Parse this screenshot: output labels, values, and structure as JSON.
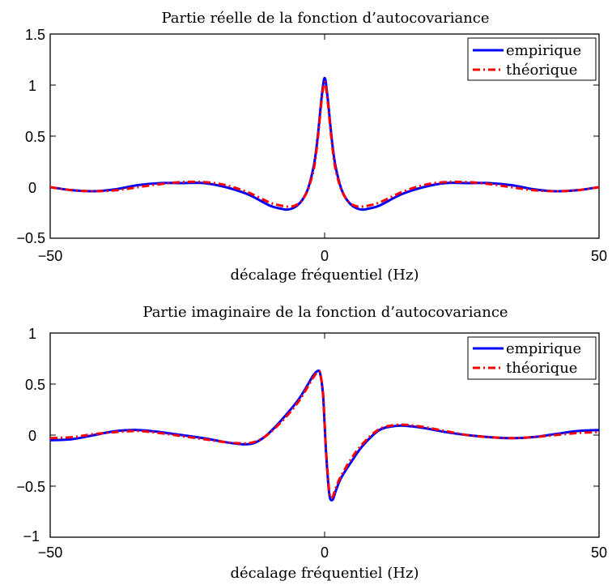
{
  "chart_data": [
    {
      "type": "line",
      "title": "Partie réelle de la fonction d’autocovariance",
      "xlabel": "décalage fréquentiel (Hz)",
      "ylabel": "",
      "xlim": [
        -50,
        50
      ],
      "ylim": [
        -0.5,
        1.5
      ],
      "xticks": [
        -50,
        0,
        50
      ],
      "yticks": [
        -0.5,
        0,
        0.5,
        1,
        1.5
      ],
      "xtick_labels": [
        "−50",
        "0",
        "50"
      ],
      "ytick_labels": [
        "−0.5",
        "0",
        "0.5",
        "1",
        "1.5"
      ],
      "grid": false,
      "legend_position": "top-right",
      "series": [
        {
          "name": "empirique",
          "color": "#0000ff",
          "style": "solid",
          "x": [
            -50,
            -46,
            -42,
            -38,
            -34,
            -30,
            -26,
            -22,
            -18,
            -14,
            -10,
            -8,
            -7,
            -6,
            -5,
            -4,
            -3,
            -2,
            -1.5,
            -1,
            -0.5,
            0,
            0.5,
            1,
            1.5,
            2,
            3,
            4,
            5,
            6,
            7,
            8,
            10,
            14,
            18,
            22,
            26,
            30,
            34,
            38,
            42,
            46,
            50
          ],
          "y": [
            0.0,
            -0.03,
            -0.04,
            -0.02,
            0.02,
            0.04,
            0.04,
            0.04,
            0.0,
            -0.07,
            -0.18,
            -0.21,
            -0.22,
            -0.21,
            -0.18,
            -0.12,
            -0.01,
            0.2,
            0.38,
            0.63,
            0.9,
            1.07,
            0.9,
            0.63,
            0.38,
            0.2,
            -0.01,
            -0.12,
            -0.18,
            -0.21,
            -0.22,
            -0.21,
            -0.18,
            -0.07,
            0.0,
            0.04,
            0.04,
            0.04,
            0.02,
            -0.02,
            -0.04,
            -0.03,
            0.0
          ]
        },
        {
          "name": "théorique",
          "color": "#ff0000",
          "style": "dashdot",
          "x": [
            -50,
            -46,
            -42,
            -38,
            -34,
            -30,
            -26,
            -22,
            -18,
            -14,
            -10,
            -8,
            -7,
            -6,
            -5,
            -4,
            -3,
            -2,
            -1.5,
            -1,
            -0.5,
            0,
            0.5,
            1,
            1.5,
            2,
            3,
            4,
            5,
            6,
            7,
            8,
            10,
            14,
            18,
            22,
            26,
            30,
            34,
            38,
            42,
            46,
            50
          ],
          "y": [
            0.0,
            -0.03,
            -0.04,
            -0.03,
            0.0,
            0.03,
            0.05,
            0.05,
            0.02,
            -0.05,
            -0.15,
            -0.18,
            -0.19,
            -0.19,
            -0.17,
            -0.12,
            -0.02,
            0.17,
            0.35,
            0.6,
            0.87,
            1.03,
            0.87,
            0.6,
            0.35,
            0.17,
            -0.02,
            -0.12,
            -0.17,
            -0.19,
            -0.19,
            -0.18,
            -0.15,
            -0.05,
            0.02,
            0.05,
            0.05,
            0.03,
            0.0,
            -0.03,
            -0.04,
            -0.03,
            0.0
          ]
        }
      ]
    },
    {
      "type": "line",
      "title": "Partie imaginaire de la fonction d’autocovariance",
      "xlabel": "décalage fréquentiel (Hz)",
      "ylabel": "",
      "xlim": [
        -50,
        50
      ],
      "ylim": [
        -1,
        1
      ],
      "xticks": [
        -50,
        0,
        50
      ],
      "yticks": [
        -1,
        -0.5,
        0,
        0.5,
        1
      ],
      "xtick_labels": [
        "−50",
        "0",
        "50"
      ],
      "ytick_labels": [
        "−1",
        "−0.5",
        "0",
        "0.5",
        "1"
      ],
      "grid": false,
      "legend_position": "top-right",
      "series": [
        {
          "name": "empirique",
          "color": "#0000ff",
          "style": "solid",
          "x": [
            -50,
            -46,
            -42,
            -38,
            -34,
            -30,
            -26,
            -22,
            -18,
            -15,
            -13,
            -11,
            -9,
            -7,
            -5,
            -4,
            -3,
            -2,
            -1.2,
            -0.8,
            -0.3,
            0,
            0.3,
            0.7,
            1,
            1.5,
            2,
            3,
            5,
            7,
            10,
            13,
            15,
            18,
            22,
            26,
            30,
            34,
            38,
            42,
            46,
            50
          ],
          "y": [
            -0.05,
            -0.04,
            0.0,
            0.04,
            0.05,
            0.03,
            0.0,
            -0.03,
            -0.07,
            -0.09,
            -0.08,
            -0.02,
            0.08,
            0.2,
            0.33,
            0.41,
            0.5,
            0.59,
            0.63,
            0.6,
            0.4,
            0.1,
            -0.2,
            -0.5,
            -0.62,
            -0.63,
            -0.55,
            -0.42,
            -0.25,
            -0.1,
            0.05,
            0.09,
            0.09,
            0.07,
            0.03,
            0.0,
            -0.02,
            -0.03,
            -0.02,
            0.01,
            0.04,
            0.05
          ]
        },
        {
          "name": "théorique",
          "color": "#ff0000",
          "style": "dashdot",
          "x": [
            -50,
            -46,
            -42,
            -38,
            -34,
            -30,
            -26,
            -22,
            -18,
            -15,
            -13,
            -11,
            -9,
            -7,
            -5,
            -4,
            -3,
            -2,
            -1.2,
            -0.8,
            -0.3,
            0,
            0.3,
            0.7,
            1,
            1.5,
            2,
            3,
            5,
            7,
            10,
            13,
            15,
            18,
            22,
            26,
            30,
            34,
            38,
            42,
            46,
            50
          ],
          "y": [
            -0.03,
            -0.02,
            0.01,
            0.03,
            0.04,
            0.02,
            -0.01,
            -0.04,
            -0.07,
            -0.08,
            -0.07,
            -0.02,
            0.07,
            0.18,
            0.31,
            0.39,
            0.48,
            0.57,
            0.62,
            0.6,
            0.42,
            0.12,
            -0.18,
            -0.47,
            -0.6,
            -0.6,
            -0.52,
            -0.4,
            -0.22,
            -0.08,
            0.06,
            0.1,
            0.1,
            0.08,
            0.04,
            0.0,
            -0.02,
            -0.03,
            -0.02,
            0.0,
            0.02,
            0.03
          ]
        }
      ]
    }
  ]
}
